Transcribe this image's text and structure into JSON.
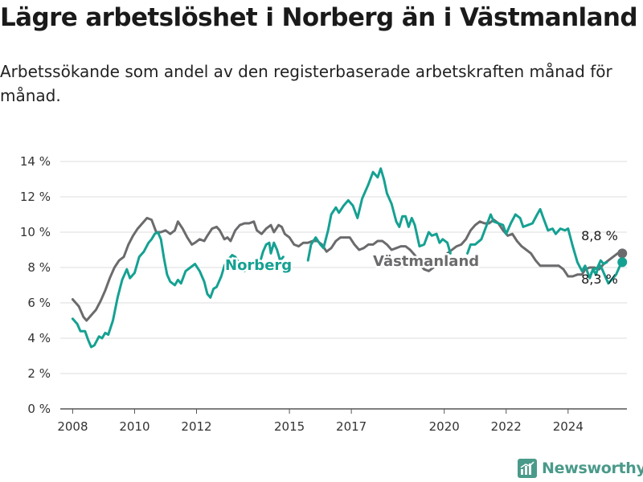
{
  "title": "Lägre arbetslöshet i Norberg än i Västmanland",
  "subtitle": "Arbetssökande som andel av den registerbaserade arbetskraften månad för månad.",
  "brand": "Newsworthy",
  "colors": {
    "norberg": "#15a192",
    "vastmanland": "#6b6b6e",
    "grid": "#dddddd",
    "axis": "#555555",
    "brand": "#4a9a8a"
  },
  "chart_data": {
    "type": "line",
    "ylim": [
      0,
      14
    ],
    "y_ticks": [
      0,
      2,
      4,
      6,
      8,
      10,
      12,
      14
    ],
    "y_tick_labels": [
      "0 %",
      "2 %",
      "4 %",
      "6 %",
      "8 %",
      "10 %",
      "12 %",
      "14 %"
    ],
    "xlim": [
      2007.6,
      2025.9
    ],
    "x_ticks": [
      2008,
      2010,
      2012,
      2015,
      2017,
      2020,
      2022,
      2024
    ],
    "x_tick_labels": [
      "2008",
      "2010",
      "2012",
      "2015",
      "2017",
      "2020",
      "2022",
      "2024"
    ],
    "grid": true,
    "series": [
      {
        "name": "Norberg",
        "label": "Norberg",
        "end_label": "8,3 %",
        "end_value": 8.3,
        "points": [
          [
            2008.0,
            5.1
          ],
          [
            2008.15,
            4.8
          ],
          [
            2008.25,
            4.4
          ],
          [
            2008.4,
            4.4
          ],
          [
            2008.5,
            3.9
          ],
          [
            2008.6,
            3.5
          ],
          [
            2008.7,
            3.6
          ],
          [
            2008.85,
            4.1
          ],
          [
            2008.95,
            4.0
          ],
          [
            2009.05,
            4.3
          ],
          [
            2009.15,
            4.2
          ],
          [
            2009.3,
            5.0
          ],
          [
            2009.45,
            6.3
          ],
          [
            2009.6,
            7.3
          ],
          [
            2009.75,
            7.9
          ],
          [
            2009.85,
            7.4
          ],
          [
            2010.0,
            7.7
          ],
          [
            2010.15,
            8.6
          ],
          [
            2010.3,
            8.9
          ],
          [
            2010.45,
            9.4
          ],
          [
            2010.55,
            9.6
          ],
          [
            2010.65,
            9.9
          ],
          [
            2010.75,
            10.0
          ],
          [
            2010.85,
            9.6
          ],
          [
            2010.95,
            8.5
          ],
          [
            2011.05,
            7.6
          ],
          [
            2011.15,
            7.2
          ],
          [
            2011.3,
            7.0
          ],
          [
            2011.4,
            7.3
          ],
          [
            2011.5,
            7.1
          ],
          [
            2011.65,
            7.8
          ],
          [
            2011.8,
            8.0
          ],
          [
            2011.95,
            8.2
          ],
          [
            2012.1,
            7.8
          ],
          [
            2012.25,
            7.2
          ],
          [
            2012.35,
            6.5
          ],
          [
            2012.45,
            6.3
          ],
          [
            2012.55,
            6.8
          ],
          [
            2012.65,
            6.9
          ],
          [
            2012.8,
            7.5
          ],
          [
            2012.9,
            8.1
          ],
          [
            2013.0,
            8.4
          ],
          [
            2013.15,
            8.7
          ],
          [
            2013.25,
            8.6
          ],
          [
            2013.35,
            8.3
          ],
          [
            2013.45,
            8.0
          ],
          [
            2013.55,
            7.8
          ],
          [
            null,
            null
          ],
          [
            2014.05,
            8.3
          ],
          [
            2014.15,
            8.9
          ],
          [
            2014.25,
            9.3
          ],
          [
            2014.35,
            9.4
          ],
          [
            2014.4,
            8.8
          ],
          [
            2014.5,
            9.4
          ],
          [
            2014.6,
            9.0
          ],
          [
            2014.7,
            8.4
          ],
          [
            2014.8,
            8.6
          ],
          [
            null,
            null
          ],
          [
            2015.6,
            8.4
          ],
          [
            2015.7,
            9.3
          ],
          [
            2015.85,
            9.7
          ],
          [
            2016.0,
            9.3
          ],
          [
            2016.1,
            9.1
          ],
          [
            2016.25,
            10.1
          ],
          [
            2016.35,
            11.0
          ],
          [
            2016.5,
            11.4
          ],
          [
            2016.6,
            11.1
          ],
          [
            2016.75,
            11.5
          ],
          [
            2016.9,
            11.8
          ],
          [
            2017.05,
            11.5
          ],
          [
            2017.2,
            10.8
          ],
          [
            2017.35,
            11.9
          ],
          [
            2017.55,
            12.7
          ],
          [
            2017.7,
            13.4
          ],
          [
            2017.85,
            13.1
          ],
          [
            2017.95,
            13.6
          ],
          [
            2018.05,
            13.0
          ],
          [
            2018.15,
            12.2
          ],
          [
            2018.3,
            11.6
          ],
          [
            2018.45,
            10.6
          ],
          [
            2018.55,
            10.3
          ],
          [
            2018.65,
            10.9
          ],
          [
            2018.75,
            10.9
          ],
          [
            2018.85,
            10.3
          ],
          [
            2018.95,
            10.8
          ],
          [
            2019.05,
            10.4
          ],
          [
            2019.2,
            9.2
          ],
          [
            2019.35,
            9.3
          ],
          [
            2019.5,
            10.0
          ],
          [
            2019.6,
            9.8
          ],
          [
            2019.75,
            9.9
          ],
          [
            2019.85,
            9.4
          ],
          [
            2019.95,
            9.6
          ],
          [
            2020.1,
            9.4
          ],
          [
            2020.2,
            8.8
          ],
          [
            null,
            null
          ],
          [
            2020.75,
            8.8
          ],
          [
            2020.85,
            9.3
          ],
          [
            2021.0,
            9.3
          ],
          [
            2021.2,
            9.6
          ],
          [
            2021.35,
            10.3
          ],
          [
            2021.5,
            11.0
          ],
          [
            2021.6,
            10.6
          ],
          [
            2021.75,
            10.5
          ],
          [
            2021.9,
            10.4
          ],
          [
            2022.0,
            9.9
          ],
          [
            2022.15,
            10.5
          ],
          [
            2022.3,
            11.0
          ],
          [
            2022.45,
            10.8
          ],
          [
            2022.55,
            10.3
          ],
          [
            2022.7,
            10.4
          ],
          [
            2022.85,
            10.5
          ],
          [
            2023.0,
            11.0
          ],
          [
            2023.1,
            11.3
          ],
          [
            2023.2,
            10.8
          ],
          [
            2023.35,
            10.1
          ],
          [
            2023.5,
            10.2
          ],
          [
            2023.6,
            9.9
          ],
          [
            2023.75,
            10.2
          ],
          [
            2023.9,
            10.1
          ],
          [
            2024.0,
            10.2
          ],
          [
            2024.15,
            9.2
          ],
          [
            2024.3,
            8.3
          ],
          [
            2024.45,
            7.8
          ],
          [
            2024.55,
            8.1
          ],
          [
            2024.7,
            7.4
          ],
          [
            2024.8,
            7.9
          ],
          [
            2024.9,
            7.6
          ],
          [
            2025.0,
            8.2
          ],
          [
            2025.1,
            7.9
          ],
          [
            2025.2,
            7.5
          ],
          [
            2025.3,
            7.1
          ],
          [
            2025.4,
            7.3
          ],
          [
            2025.55,
            7.6
          ],
          [
            2025.65,
            8.0
          ],
          [
            2025.75,
            8.4
          ],
          [
            2025.85,
            8.3
          ],
          [
            null,
            null
          ],
          [
            2024.75,
            7.7
          ],
          [
            2024.85,
            7.9
          ],
          [
            2024.95,
            8.0
          ],
          [
            2025.05,
            8.4
          ],
          [
            2025.15,
            8.2
          ],
          [
            2025.25,
            8.3
          ]
        ]
      },
      {
        "name": "Västmanland",
        "label": "Västmanland",
        "end_label": "8,8 %",
        "end_value": 8.8,
        "points": [
          [
            2008.0,
            6.2
          ],
          [
            2008.2,
            5.8
          ],
          [
            2008.35,
            5.2
          ],
          [
            2008.45,
            5.0
          ],
          [
            2008.6,
            5.3
          ],
          [
            2008.75,
            5.6
          ],
          [
            2008.9,
            6.1
          ],
          [
            2009.05,
            6.7
          ],
          [
            2009.2,
            7.4
          ],
          [
            2009.35,
            8.0
          ],
          [
            2009.5,
            8.4
          ],
          [
            2009.65,
            8.6
          ],
          [
            2009.8,
            9.3
          ],
          [
            2009.95,
            9.8
          ],
          [
            2010.1,
            10.2
          ],
          [
            2010.25,
            10.5
          ],
          [
            2010.4,
            10.8
          ],
          [
            2010.55,
            10.7
          ],
          [
            2010.7,
            10.0
          ],
          [
            2010.85,
            10.0
          ],
          [
            2011.0,
            10.1
          ],
          [
            2011.15,
            9.9
          ],
          [
            2011.3,
            10.1
          ],
          [
            2011.4,
            10.6
          ],
          [
            2011.55,
            10.2
          ],
          [
            2011.7,
            9.7
          ],
          [
            2011.85,
            9.3
          ],
          [
            2011.95,
            9.4
          ],
          [
            2012.1,
            9.6
          ],
          [
            2012.25,
            9.5
          ],
          [
            2012.35,
            9.8
          ],
          [
            2012.5,
            10.2
          ],
          [
            2012.65,
            10.3
          ],
          [
            2012.75,
            10.1
          ],
          [
            2012.9,
            9.6
          ],
          [
            2013.0,
            9.7
          ],
          [
            2013.1,
            9.5
          ],
          [
            2013.25,
            10.1
          ],
          [
            2013.4,
            10.4
          ],
          [
            2013.55,
            10.5
          ],
          [
            2013.7,
            10.5
          ],
          [
            2013.85,
            10.6
          ],
          [
            2013.95,
            10.1
          ],
          [
            2014.1,
            9.9
          ],
          [
            2014.25,
            10.2
          ],
          [
            2014.4,
            10.4
          ],
          [
            2014.5,
            10.0
          ],
          [
            2014.65,
            10.4
          ],
          [
            2014.75,
            10.3
          ],
          [
            2014.85,
            9.9
          ],
          [
            2015.0,
            9.7
          ],
          [
            2015.15,
            9.3
          ],
          [
            2015.3,
            9.2
          ],
          [
            2015.45,
            9.4
          ],
          [
            2015.6,
            9.4
          ],
          [
            2015.75,
            9.5
          ],
          [
            2015.9,
            9.5
          ],
          [
            2016.05,
            9.3
          ],
          [
            2016.2,
            8.9
          ],
          [
            2016.35,
            9.1
          ],
          [
            2016.5,
            9.5
          ],
          [
            2016.65,
            9.7
          ],
          [
            2016.8,
            9.7
          ],
          [
            2016.95,
            9.7
          ],
          [
            2017.1,
            9.3
          ],
          [
            2017.25,
            9.0
          ],
          [
            2017.4,
            9.1
          ],
          [
            2017.55,
            9.3
          ],
          [
            2017.7,
            9.3
          ],
          [
            2017.85,
            9.5
          ],
          [
            2018.0,
            9.5
          ],
          [
            2018.15,
            9.3
          ],
          [
            2018.3,
            9.0
          ],
          [
            2018.45,
            9.1
          ],
          [
            2018.6,
            9.2
          ],
          [
            2018.75,
            9.2
          ],
          [
            2018.9,
            9.0
          ],
          [
            2019.05,
            8.7
          ],
          [
            2019.2,
            8.2
          ],
          [
            2019.35,
            7.9
          ],
          [
            2019.5,
            7.8
          ],
          [
            2019.65,
            8.0
          ],
          [
            2019.8,
            8.3
          ],
          [
            2019.95,
            8.5
          ],
          [
            2020.1,
            8.8
          ],
          [
            2020.25,
            9.0
          ],
          [
            2020.4,
            9.2
          ],
          [
            2020.55,
            9.3
          ],
          [
            2020.7,
            9.6
          ],
          [
            2020.85,
            10.1
          ],
          [
            2021.0,
            10.4
          ],
          [
            2021.15,
            10.6
          ],
          [
            2021.3,
            10.5
          ],
          [
            2021.45,
            10.5
          ],
          [
            2021.6,
            10.7
          ],
          [
            2021.75,
            10.5
          ],
          [
            2021.9,
            10.1
          ],
          [
            2022.05,
            9.8
          ],
          [
            2022.2,
            9.9
          ],
          [
            2022.35,
            9.5
          ],
          [
            2022.5,
            9.2
          ],
          [
            2022.65,
            9.0
          ],
          [
            2022.8,
            8.8
          ],
          [
            2022.95,
            8.4
          ],
          [
            2023.1,
            8.1
          ],
          [
            2023.3,
            8.1
          ],
          [
            2023.5,
            8.1
          ],
          [
            2023.7,
            8.1
          ],
          [
            2023.85,
            7.9
          ],
          [
            2024.0,
            7.5
          ],
          [
            2024.15,
            7.5
          ],
          [
            2024.3,
            7.6
          ],
          [
            2024.45,
            7.6
          ],
          [
            2024.55,
            7.9
          ],
          [
            2024.7,
            8.0
          ],
          [
            2024.85,
            8.0
          ],
          [
            2025.0,
            7.9
          ],
          [
            2025.15,
            8.2
          ],
          [
            2025.3,
            8.4
          ],
          [
            2025.45,
            8.6
          ],
          [
            2025.6,
            8.8
          ]
        ]
      }
    ]
  }
}
